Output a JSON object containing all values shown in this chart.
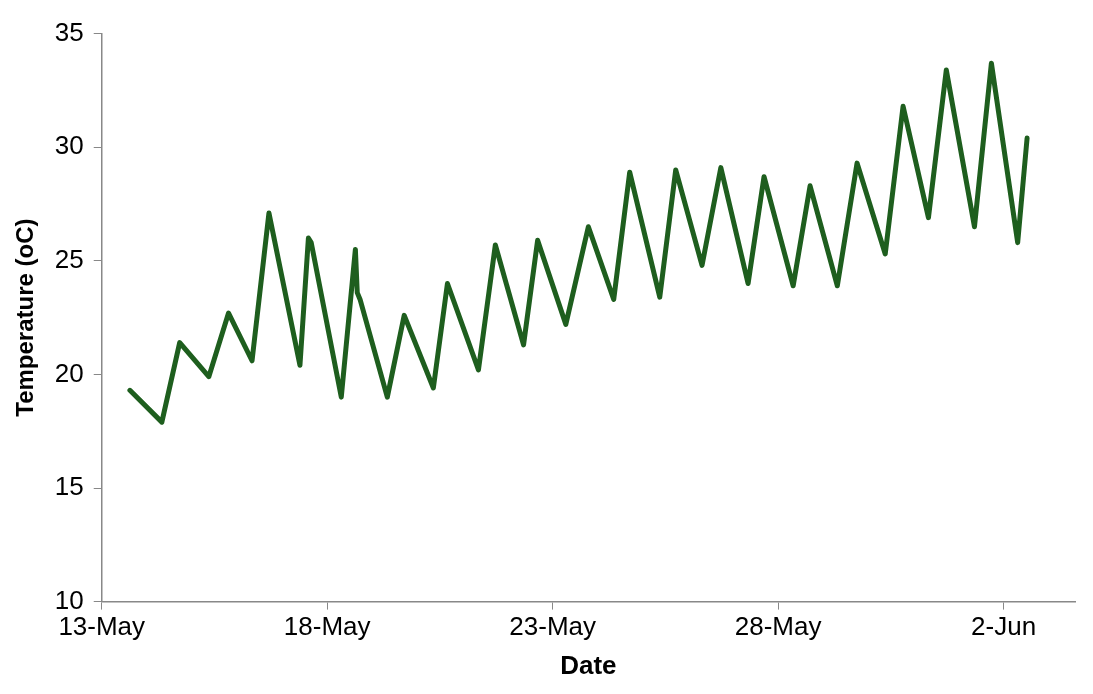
{
  "chart_data": {
    "type": "line",
    "xlabel": "Date",
    "ylabel": "Temperature (oC)",
    "grid": false,
    "legend": false,
    "marker": "none",
    "line_style": "solid",
    "xlim": [
      "--05-13T00:00",
      "--06-03T14:00"
    ],
    "xticks": [
      {
        "value": "--05-13",
        "label": "13-May"
      },
      {
        "value": "--05-18",
        "label": "18-May"
      },
      {
        "value": "--05-23",
        "label": "23-May"
      },
      {
        "value": "--05-28",
        "label": "28-May"
      },
      {
        "value": "--06-02",
        "label": "2-Jun"
      }
    ],
    "ylim": [
      10,
      35
    ],
    "yticks": [
      10,
      15,
      20,
      25,
      30,
      35
    ],
    "x": [
      "--05-13T15:00",
      "--05-14T08:00",
      "--05-14T17:30",
      "--05-15T09:00",
      "--05-15T19:30",
      "--05-16T08:00",
      "--05-16T17:00",
      "--05-17T09:30",
      "--05-17T14:00",
      "--05-17T15:30",
      "--05-18T07:30",
      "--05-18T15:00",
      "--05-18T16:00",
      "--05-18T17:30",
      "--05-19T08:00",
      "--05-19T17:00",
      "--05-20T08:30",
      "--05-20T16:00",
      "--05-21T08:30",
      "--05-21T17:30",
      "--05-22T08:30",
      "--05-22T16:00",
      "--05-23T07:00",
      "--05-23T19:00",
      "--05-24T08:30",
      "--05-24T17:00",
      "--05-25T09:00",
      "--05-25T17:30",
      "--05-26T07:30",
      "--05-26T17:30",
      "--05-27T08:00",
      "--05-27T16:30",
      "--05-28T08:00",
      "--05-28T17:00",
      "--05-29T07:30",
      "--05-29T18:00",
      "--05-30T09:00",
      "--05-30T18:30",
      "--05-31T08:00",
      "--05-31T17:30",
      "--06-01T08:30",
      "--06-01T17:30",
      "--06-02T07:30",
      "--06-02T12:30"
    ],
    "series": [
      {
        "color": "#1e5e1e",
        "values": [
          19.3,
          17.9,
          21.4,
          19.9,
          22.7,
          20.6,
          27.1,
          20.4,
          26.0,
          25.8,
          19.0,
          25.5,
          23.6,
          23.3,
          19.0,
          22.6,
          19.4,
          24.0,
          20.2,
          25.7,
          21.3,
          25.9,
          22.2,
          26.5,
          23.3,
          28.9,
          23.4,
          29.0,
          24.8,
          29.1,
          24.0,
          28.7,
          23.9,
          28.3,
          23.9,
          29.3,
          25.3,
          31.8,
          26.9,
          33.4,
          26.5,
          33.7,
          25.8,
          30.4
        ]
      }
    ]
  }
}
